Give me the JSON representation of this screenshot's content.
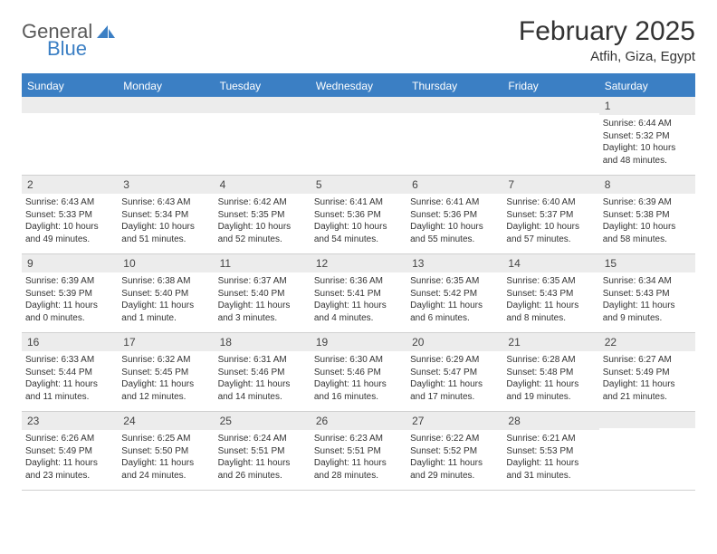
{
  "brand": {
    "part1": "General",
    "part2": "Blue"
  },
  "title": "February 2025",
  "location": "Atfih, Giza, Egypt",
  "colors": {
    "accent": "#3b7fc4",
    "header_text": "#ffffff",
    "daynum_bg": "#ececec",
    "body_text": "#333333",
    "divider": "#d0d0d0",
    "background": "#ffffff"
  },
  "day_headers": [
    "Sunday",
    "Monday",
    "Tuesday",
    "Wednesday",
    "Thursday",
    "Friday",
    "Saturday"
  ],
  "weeks": [
    [
      {
        "n": "",
        "lines": []
      },
      {
        "n": "",
        "lines": []
      },
      {
        "n": "",
        "lines": []
      },
      {
        "n": "",
        "lines": []
      },
      {
        "n": "",
        "lines": []
      },
      {
        "n": "",
        "lines": []
      },
      {
        "n": "1",
        "lines": [
          "Sunrise: 6:44 AM",
          "Sunset: 5:32 PM",
          "Daylight: 10 hours and 48 minutes."
        ]
      }
    ],
    [
      {
        "n": "2",
        "lines": [
          "Sunrise: 6:43 AM",
          "Sunset: 5:33 PM",
          "Daylight: 10 hours and 49 minutes."
        ]
      },
      {
        "n": "3",
        "lines": [
          "Sunrise: 6:43 AM",
          "Sunset: 5:34 PM",
          "Daylight: 10 hours and 51 minutes."
        ]
      },
      {
        "n": "4",
        "lines": [
          "Sunrise: 6:42 AM",
          "Sunset: 5:35 PM",
          "Daylight: 10 hours and 52 minutes."
        ]
      },
      {
        "n": "5",
        "lines": [
          "Sunrise: 6:41 AM",
          "Sunset: 5:36 PM",
          "Daylight: 10 hours and 54 minutes."
        ]
      },
      {
        "n": "6",
        "lines": [
          "Sunrise: 6:41 AM",
          "Sunset: 5:36 PM",
          "Daylight: 10 hours and 55 minutes."
        ]
      },
      {
        "n": "7",
        "lines": [
          "Sunrise: 6:40 AM",
          "Sunset: 5:37 PM",
          "Daylight: 10 hours and 57 minutes."
        ]
      },
      {
        "n": "8",
        "lines": [
          "Sunrise: 6:39 AM",
          "Sunset: 5:38 PM",
          "Daylight: 10 hours and 58 minutes."
        ]
      }
    ],
    [
      {
        "n": "9",
        "lines": [
          "Sunrise: 6:39 AM",
          "Sunset: 5:39 PM",
          "Daylight: 11 hours and 0 minutes."
        ]
      },
      {
        "n": "10",
        "lines": [
          "Sunrise: 6:38 AM",
          "Sunset: 5:40 PM",
          "Daylight: 11 hours and 1 minute."
        ]
      },
      {
        "n": "11",
        "lines": [
          "Sunrise: 6:37 AM",
          "Sunset: 5:40 PM",
          "Daylight: 11 hours and 3 minutes."
        ]
      },
      {
        "n": "12",
        "lines": [
          "Sunrise: 6:36 AM",
          "Sunset: 5:41 PM",
          "Daylight: 11 hours and 4 minutes."
        ]
      },
      {
        "n": "13",
        "lines": [
          "Sunrise: 6:35 AM",
          "Sunset: 5:42 PM",
          "Daylight: 11 hours and 6 minutes."
        ]
      },
      {
        "n": "14",
        "lines": [
          "Sunrise: 6:35 AM",
          "Sunset: 5:43 PM",
          "Daylight: 11 hours and 8 minutes."
        ]
      },
      {
        "n": "15",
        "lines": [
          "Sunrise: 6:34 AM",
          "Sunset: 5:43 PM",
          "Daylight: 11 hours and 9 minutes."
        ]
      }
    ],
    [
      {
        "n": "16",
        "lines": [
          "Sunrise: 6:33 AM",
          "Sunset: 5:44 PM",
          "Daylight: 11 hours and 11 minutes."
        ]
      },
      {
        "n": "17",
        "lines": [
          "Sunrise: 6:32 AM",
          "Sunset: 5:45 PM",
          "Daylight: 11 hours and 12 minutes."
        ]
      },
      {
        "n": "18",
        "lines": [
          "Sunrise: 6:31 AM",
          "Sunset: 5:46 PM",
          "Daylight: 11 hours and 14 minutes."
        ]
      },
      {
        "n": "19",
        "lines": [
          "Sunrise: 6:30 AM",
          "Sunset: 5:46 PM",
          "Daylight: 11 hours and 16 minutes."
        ]
      },
      {
        "n": "20",
        "lines": [
          "Sunrise: 6:29 AM",
          "Sunset: 5:47 PM",
          "Daylight: 11 hours and 17 minutes."
        ]
      },
      {
        "n": "21",
        "lines": [
          "Sunrise: 6:28 AM",
          "Sunset: 5:48 PM",
          "Daylight: 11 hours and 19 minutes."
        ]
      },
      {
        "n": "22",
        "lines": [
          "Sunrise: 6:27 AM",
          "Sunset: 5:49 PM",
          "Daylight: 11 hours and 21 minutes."
        ]
      }
    ],
    [
      {
        "n": "23",
        "lines": [
          "Sunrise: 6:26 AM",
          "Sunset: 5:49 PM",
          "Daylight: 11 hours and 23 minutes."
        ]
      },
      {
        "n": "24",
        "lines": [
          "Sunrise: 6:25 AM",
          "Sunset: 5:50 PM",
          "Daylight: 11 hours and 24 minutes."
        ]
      },
      {
        "n": "25",
        "lines": [
          "Sunrise: 6:24 AM",
          "Sunset: 5:51 PM",
          "Daylight: 11 hours and 26 minutes."
        ]
      },
      {
        "n": "26",
        "lines": [
          "Sunrise: 6:23 AM",
          "Sunset: 5:51 PM",
          "Daylight: 11 hours and 28 minutes."
        ]
      },
      {
        "n": "27",
        "lines": [
          "Sunrise: 6:22 AM",
          "Sunset: 5:52 PM",
          "Daylight: 11 hours and 29 minutes."
        ]
      },
      {
        "n": "28",
        "lines": [
          "Sunrise: 6:21 AM",
          "Sunset: 5:53 PM",
          "Daylight: 11 hours and 31 minutes."
        ]
      },
      {
        "n": "",
        "lines": []
      }
    ]
  ]
}
